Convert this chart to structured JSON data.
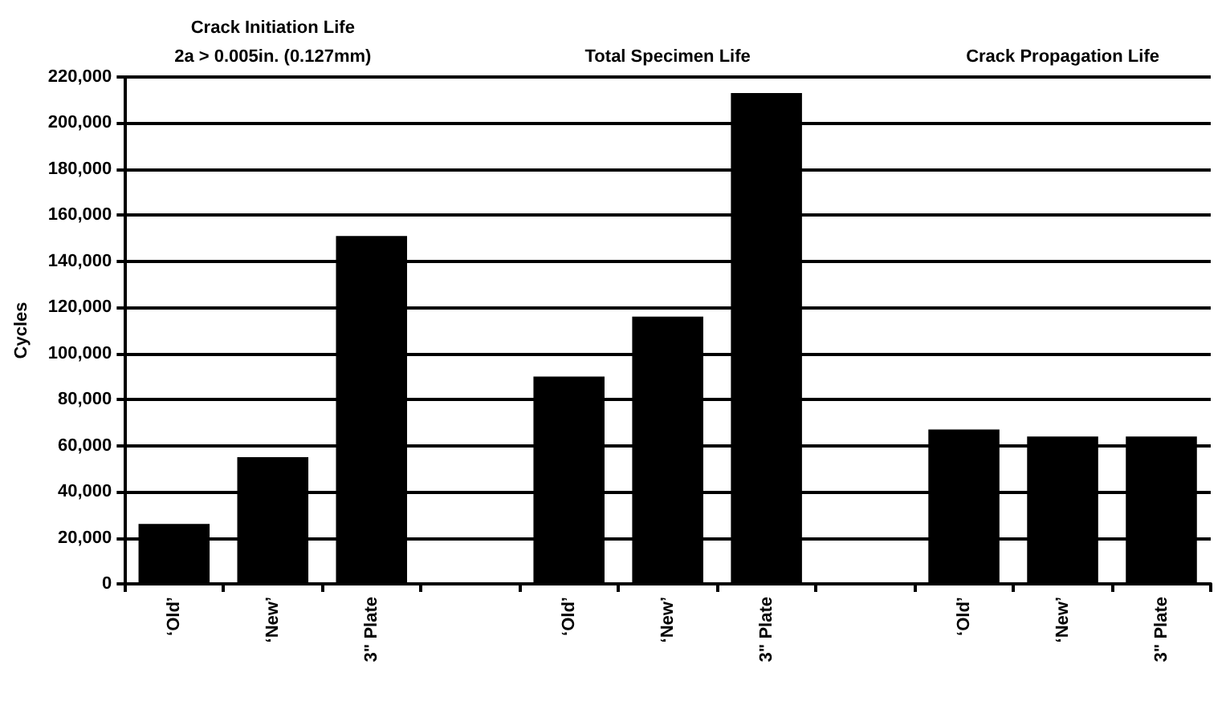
{
  "chart_data": {
    "type": "bar",
    "ylabel": "Cycles",
    "annotations": [
      "Crack Initiation Life",
      "2a > 0.005in. (0.127mm)",
      "Total Specimen Life",
      "Crack Propagation Life"
    ],
    "categories": [
      "‘Old’",
      "‘New’",
      "3\" Plate",
      null,
      "‘Old’",
      "‘New’",
      "3\" Plate",
      null,
      "‘Old’",
      "‘New’",
      "3\" Plate"
    ],
    "values": [
      26000,
      55000,
      151000,
      null,
      90000,
      116000,
      213000,
      null,
      67000,
      64000,
      64000
    ],
    "color": "#000000",
    "ylim": [
      0,
      220000
    ],
    "yticks": [
      0,
      {
        "value": 20000,
        "label": "20,000"
      },
      {
        "value": 40000,
        "label": "40,000"
      },
      {
        "value": 60000,
        "label": "60,000"
      },
      {
        "value": 80000,
        "label": "80,000"
      },
      {
        "value": 100000,
        "label": "100,000"
      },
      {
        "value": 120000,
        "label": "120,000"
      },
      {
        "value": 140000,
        "label": "140,000"
      },
      {
        "value": 160000,
        "label": "160,000"
      },
      {
        "value": 180000,
        "label": "180,000"
      },
      {
        "value": 200000,
        "label": "200,000"
      },
      {
        "value": 220000,
        "label": "220,000"
      }
    ],
    "grid": "y"
  }
}
